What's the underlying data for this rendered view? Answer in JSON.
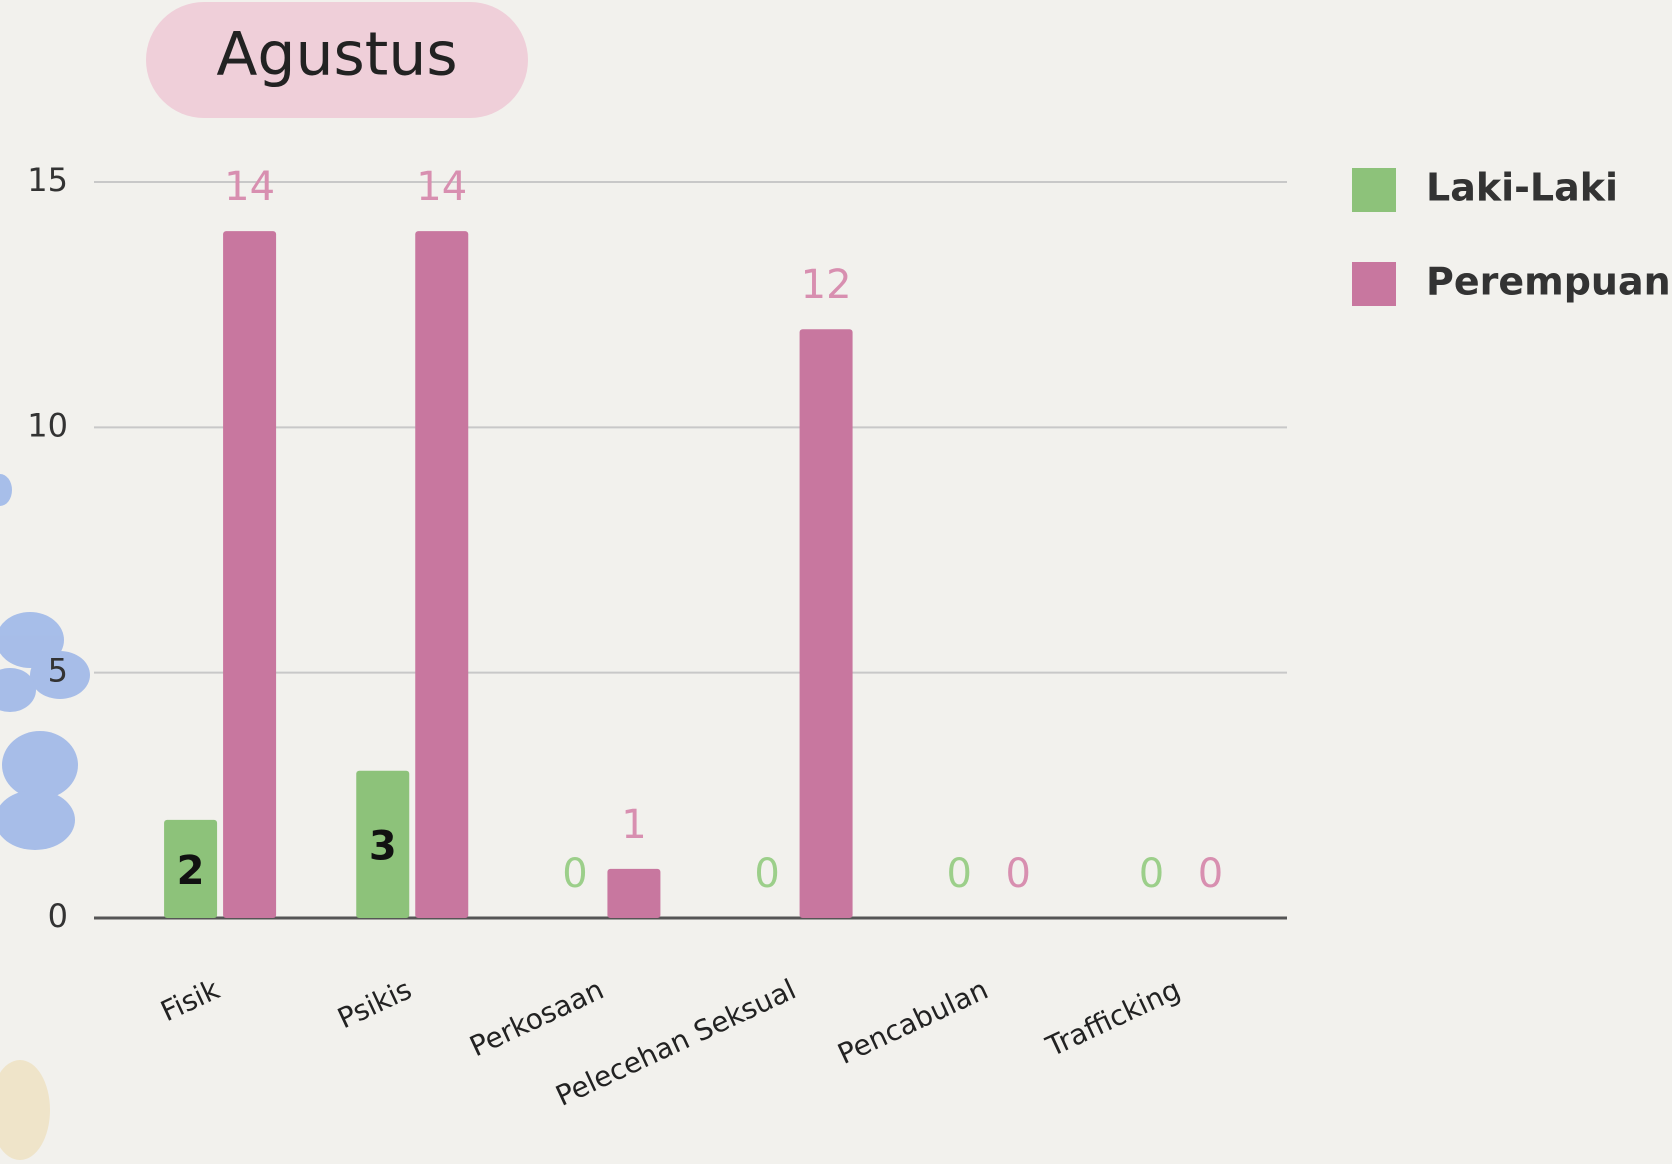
{
  "chart_data": {
    "type": "bar",
    "title": "Agustus",
    "categories": [
      "Fisik",
      "Psikis",
      "Perkosaan",
      "Pelecehan Seksual",
      "Pencabulan",
      "Trafficking"
    ],
    "series": [
      {
        "name": "Laki-Laki",
        "color": "#8dc27a",
        "values": [
          2,
          3,
          0,
          0,
          0,
          0
        ]
      },
      {
        "name": "Perempuan",
        "color": "#c8779f",
        "values": [
          14,
          14,
          1,
          12,
          0,
          0
        ]
      }
    ],
    "ylim": [
      0,
      15
    ],
    "yticks": [
      0,
      5,
      10,
      15
    ],
    "grid": true,
    "legend": "right"
  }
}
